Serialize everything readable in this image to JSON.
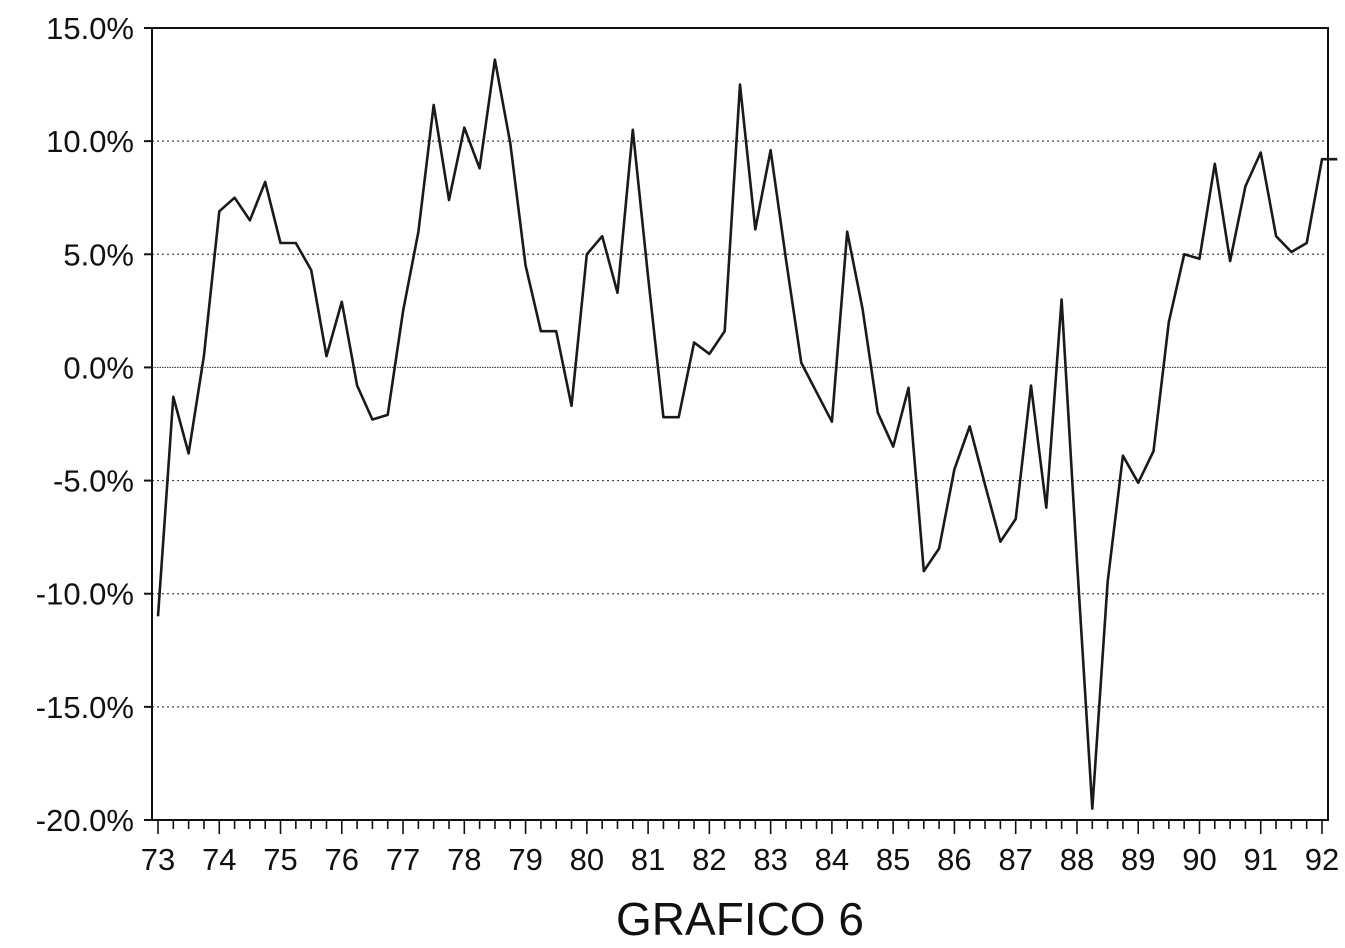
{
  "chart_data": {
    "type": "line",
    "title": "GRAFICO 6",
    "xlabel": "",
    "ylabel": "",
    "x_tick_labels": [
      "73",
      "74",
      "75",
      "76",
      "77",
      "78",
      "79",
      "80",
      "81",
      "82",
      "83",
      "84",
      "85",
      "86",
      "87",
      "88",
      "89",
      "90",
      "91",
      "92"
    ],
    "y_tick_labels": [
      "15.0%",
      "10.0%",
      "5.0%",
      "0.0%",
      "-5.0%",
      "-10.0%",
      "-15.0%",
      "-20.0%"
    ],
    "ylim": [
      -20,
      15
    ],
    "y_ticks": [
      15,
      10,
      5,
      0,
      -5,
      -10,
      -15,
      -20
    ],
    "xlim": [
      73,
      92
    ],
    "grid": "horizontal-dotted",
    "line_color": "#1a1a1a",
    "series": [
      {
        "x": [
          73.0,
          73.25,
          73.5,
          73.75,
          74.0,
          74.25,
          74.5,
          74.75,
          75.0,
          75.25,
          75.5,
          75.75,
          76.0,
          76.25,
          76.5,
          76.75,
          77.0,
          77.25,
          77.5,
          77.75,
          78.0,
          78.25,
          78.5,
          78.75,
          79.0,
          79.25,
          79.5,
          79.75,
          80.0,
          80.25,
          80.5,
          80.75,
          81.0,
          81.25,
          81.5,
          81.75,
          82.0,
          82.25,
          82.5,
          82.75,
          83.0,
          83.25,
          83.5,
          83.75,
          84.0,
          84.25,
          84.5,
          84.75,
          85.0,
          85.25,
          85.5,
          85.75,
          86.0,
          86.25,
          86.5,
          86.75,
          87.0,
          87.25,
          87.5,
          87.75,
          88.0,
          88.25,
          88.5,
          88.75,
          89.0,
          89.25,
          89.5,
          89.75,
          90.0,
          90.25,
          90.5,
          90.75,
          91.0,
          91.25,
          91.5,
          91.75,
          92.0,
          92.25
        ],
        "values": [
          -11.0,
          -1.3,
          -3.8,
          0.5,
          6.9,
          7.5,
          6.5,
          8.2,
          5.5,
          5.5,
          4.3,
          0.5,
          2.9,
          -0.8,
          -2.3,
          -2.1,
          2.5,
          6.0,
          11.6,
          7.4,
          10.6,
          8.8,
          13.6,
          9.9,
          4.5,
          1.6,
          1.6,
          -1.7,
          5.0,
          5.8,
          3.3,
          10.5,
          4.0,
          -2.2,
          -2.2,
          1.1,
          0.6,
          1.6,
          12.5,
          6.1,
          9.6,
          4.8,
          0.2,
          -1.1,
          -2.4,
          6.0,
          2.6,
          -2.0,
          -3.5,
          -0.9,
          -9.0,
          -8.0,
          -4.5,
          -2.6,
          -5.2,
          -7.7,
          -6.7,
          -0.8,
          -6.2,
          3.0,
          -8.5,
          -19.5,
          -9.5,
          -3.9,
          -5.1,
          -3.7,
          2.0,
          5.0,
          4.8,
          9.0,
          4.7,
          8.0,
          9.5,
          5.8,
          5.1,
          5.5,
          9.2,
          9.2
        ]
      }
    ]
  }
}
